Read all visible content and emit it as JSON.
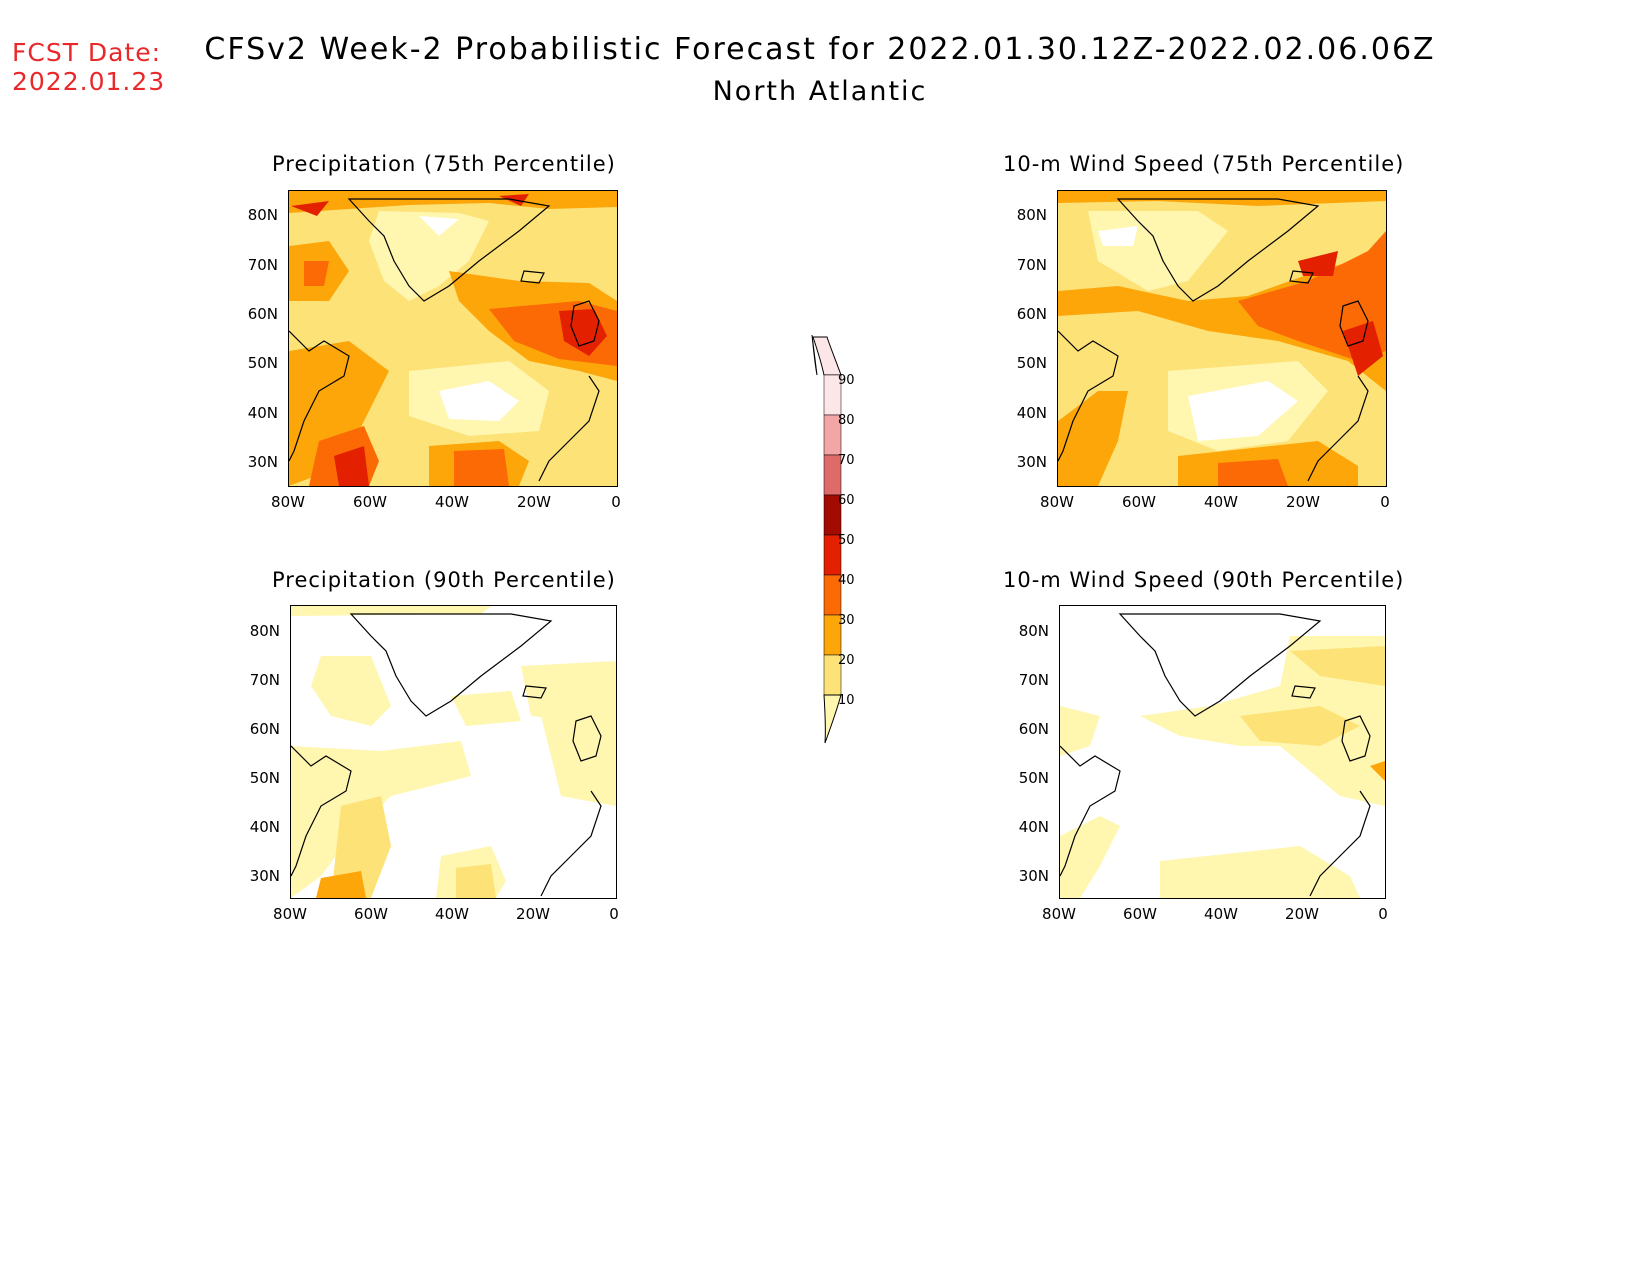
{
  "header": {
    "fcst_label": "FCST Date:",
    "fcst_date": "2022.01.23",
    "title": "CFSv2 Week-2 Probabilistic Forecast for 2022.01.30.12Z-2022.02.06.06Z",
    "subtitle": "North Atlantic"
  },
  "colors": {
    "accent": "#e8282a",
    "bins": [
      "#ffffff",
      "#fff6b0",
      "#fde278",
      "#fca60a",
      "#fb6a04",
      "#e32000",
      "#a30a00",
      "#de6a6a",
      "#f2a6a6",
      "#fde6e8"
    ]
  },
  "panels": [
    {
      "id": "precip75",
      "title": "Precipitation (75th Percentile)"
    },
    {
      "id": "wind75",
      "title": "10-m Wind Speed (75th Percentile)"
    },
    {
      "id": "precip90",
      "title": "Precipitation (90th Percentile)"
    },
    {
      "id": "wind90",
      "title": "10-m Wind Speed (90th Percentile)"
    }
  ],
  "axes": {
    "lat_labels": [
      "80N",
      "70N",
      "60N",
      "50N",
      "40N",
      "30N"
    ],
    "lon_labels": [
      "80W",
      "60W",
      "40W",
      "20W",
      "0"
    ]
  },
  "colorbar": {
    "labels": [
      "10",
      "20",
      "30",
      "40",
      "50",
      "60",
      "70",
      "80",
      "90"
    ]
  }
}
